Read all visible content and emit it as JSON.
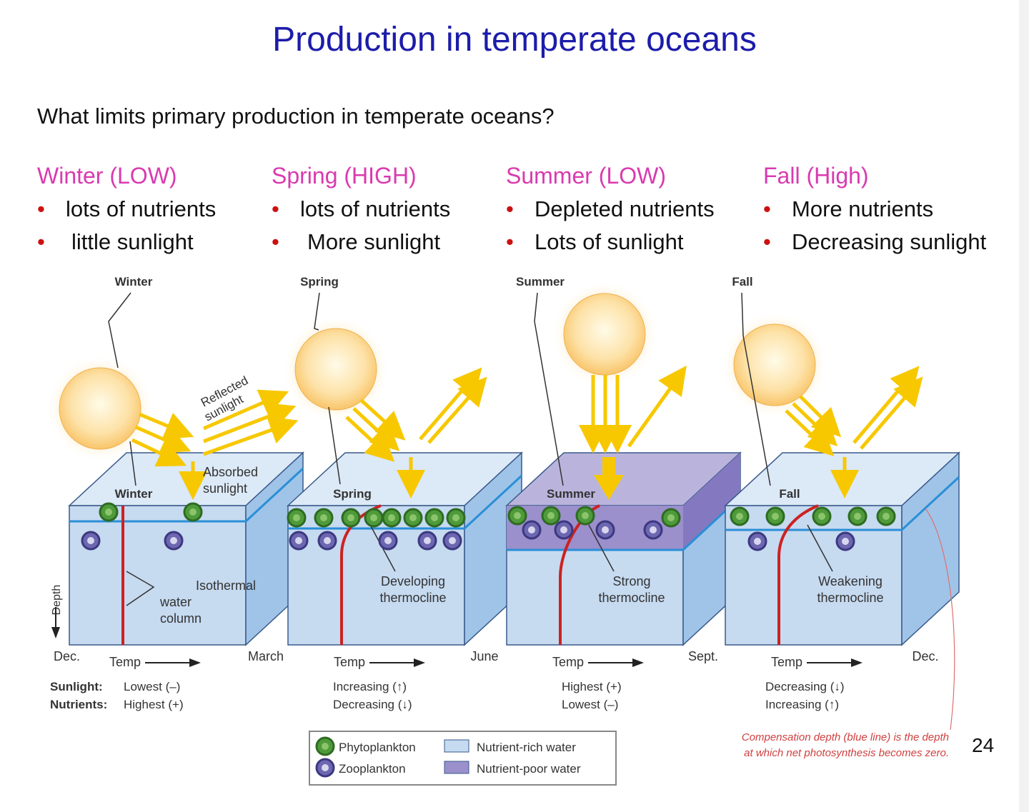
{
  "title": "Production in temperate oceans",
  "question": "What limits primary production in temperate oceans?",
  "colors": {
    "title": "#1c1caa",
    "heading": "#d93ab0",
    "bullet": "#cc1111",
    "sun": "#fdd79a",
    "rays": "#f7c800",
    "nutrient_rich": "#c6daf0",
    "nutrient_poor": "#9b8fcc",
    "phytoplankton": "#4f9a3a",
    "zooplankton": "#6c67b0",
    "thermocline": "#cc2222",
    "compensation_line": "#2a8fd6"
  },
  "seasons": [
    {
      "heading": "Winter (LOW)",
      "bullets": [
        "lots of nutrients",
        "little sunlight"
      ],
      "diagram_label": "Winter",
      "block_label": "Winter",
      "water_text": [
        "Isothermal",
        "water",
        "column"
      ],
      "sunlight": "Lowest (–)",
      "nutrients": "Highest (+)"
    },
    {
      "heading": "Spring (HIGH)",
      "bullets": [
        "lots of nutrients",
        "More sunlight"
      ],
      "diagram_label": "Spring",
      "block_label": "Spring",
      "water_text": [
        "Developing",
        "thermocline"
      ],
      "sunlight": "Increasing (↑)",
      "nutrients": "Decreasing (↓)"
    },
    {
      "heading": "Summer (LOW)",
      "bullets": [
        "Depleted nutrients",
        "Lots of sunlight"
      ],
      "diagram_label": "Summer",
      "block_label": "Summer",
      "water_text": [
        "Strong",
        "thermocline"
      ],
      "sunlight": "Highest (+)",
      "nutrients": "Lowest (–)"
    },
    {
      "heading": "Fall (High)",
      "bullets": [
        "More nutrients",
        "Decreasing sunlight"
      ],
      "diagram_label": "Fall",
      "block_label": "Fall",
      "water_text": [
        "Weakening",
        "thermocline"
      ],
      "sunlight": "Decreasing (↓)",
      "nutrients": "Increasing (↑)"
    }
  ],
  "months": [
    "Dec.",
    "March",
    "June",
    "Sept.",
    "Dec."
  ],
  "labels": {
    "reflected": [
      "Reflected",
      "sunlight"
    ],
    "absorbed": [
      "Absorbed",
      "sunlight"
    ],
    "depth": "Depth",
    "temp": "Temp",
    "sunlight": "Sunlight:",
    "nutrients": "Nutrients:"
  },
  "legend": {
    "phytoplankton": "Phytoplankton",
    "zooplankton": "Zooplankton",
    "nutrient_rich": "Nutrient-rich water",
    "nutrient_poor": "Nutrient-poor water"
  },
  "note": [
    "Compensation depth (blue line) is the depth",
    "at which net photosynthesis becomes zero."
  ],
  "page_number": "24"
}
